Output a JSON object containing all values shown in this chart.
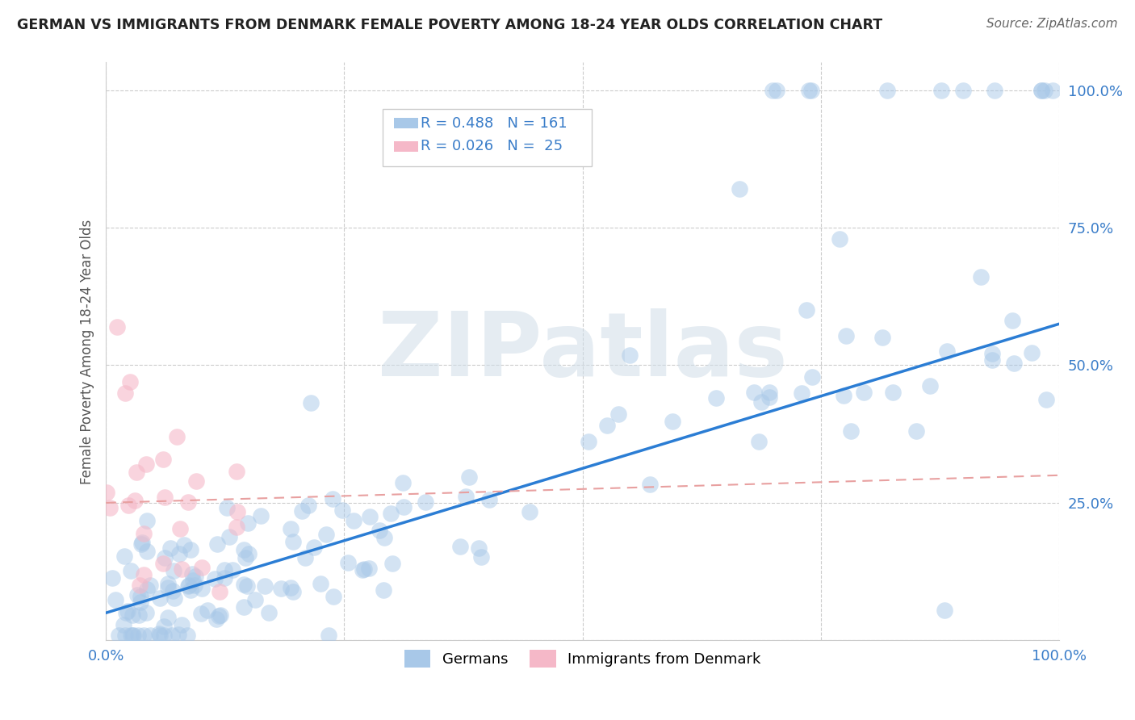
{
  "title": "GERMAN VS IMMIGRANTS FROM DENMARK FEMALE POVERTY AMONG 18-24 YEAR OLDS CORRELATION CHART",
  "source": "Source: ZipAtlas.com",
  "ylabel": "Female Poverty Among 18-24 Year Olds",
  "xlabel": "",
  "watermark": "ZIPatlas",
  "legend_box": {
    "german_R": "R = 0.488",
    "german_N": "N = 161",
    "denmark_R": "R = 0.026",
    "denmark_N": "N =  25",
    "german_color": "#a8c8e8",
    "denmark_color": "#f5b8c8"
  },
  "german_color": "#a8c8e8",
  "denmark_color": "#f5b8c8",
  "german_line_color": "#2b7dd4",
  "denmark_line_color": "#e8a0a0",
  "title_color": "#222222",
  "source_color": "#666666",
  "axis_label_color": "#555555",
  "tick_color": "#3a7dc9",
  "grid_color": "#cccccc",
  "background_color": "#ffffff",
  "xlim": [
    0.0,
    1.0
  ],
  "ylim": [
    0.0,
    1.05
  ],
  "german_regression_x0": 0.0,
  "german_regression_y0": 0.05,
  "german_regression_x1": 1.0,
  "german_regression_y1": 0.575,
  "denmark_regression_x0": 0.0,
  "denmark_regression_y0": 0.25,
  "denmark_regression_x1": 1.0,
  "denmark_regression_y1": 0.3
}
